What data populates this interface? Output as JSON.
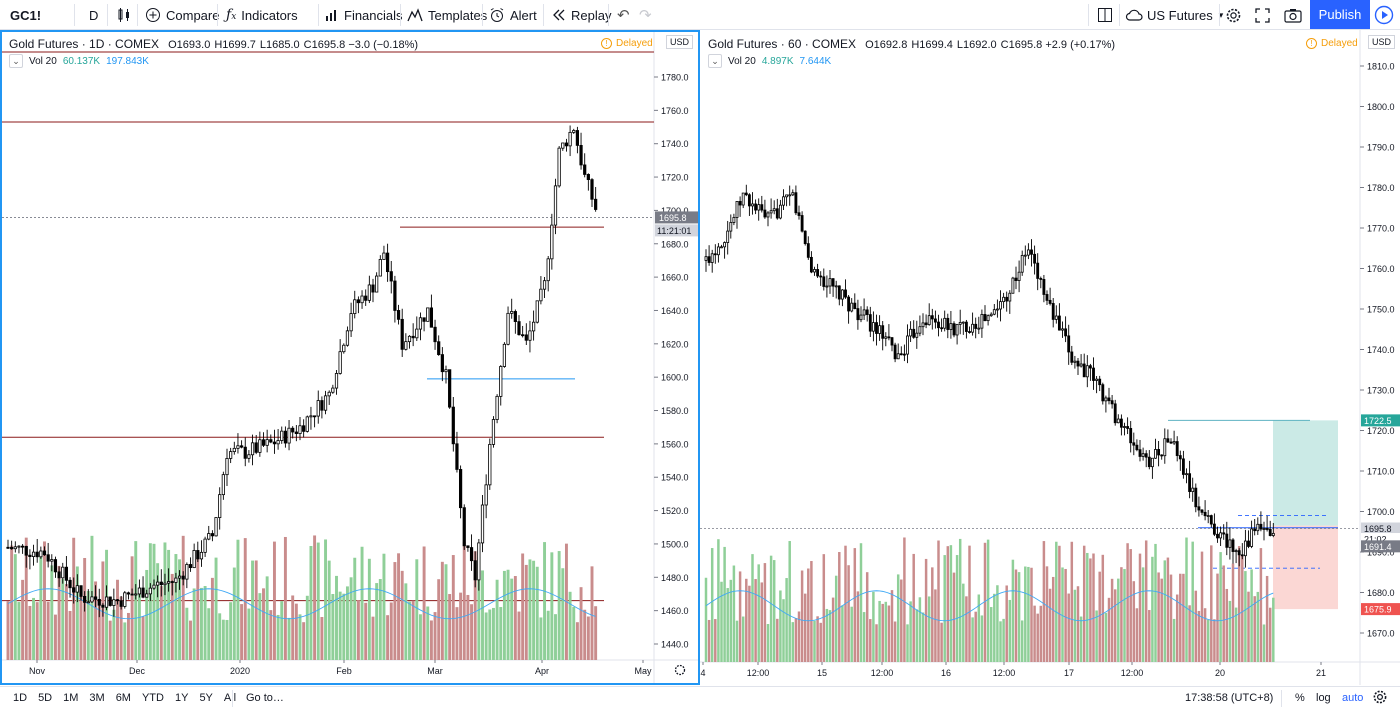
{
  "toolbar": {
    "symbol": "GC1!",
    "interval": "D",
    "compare": "Compare",
    "indicators": "Indicators",
    "financials": "Financials",
    "templates": "Templates",
    "alert": "Alert",
    "replay": "Replay",
    "market": "US Futures",
    "publish": "Publish"
  },
  "left": {
    "title": "Gold Futures · 1D · COMEX",
    "ohlc": [
      {
        "k": "O",
        "v": "1693.0"
      },
      {
        "k": "H",
        "v": "1699.7"
      },
      {
        "k": "L",
        "v": "1685.0"
      },
      {
        "k": "C",
        "v": "1695.8"
      }
    ],
    "change": "−3.0 (−0.18%)",
    "vol_label": "Vol 20",
    "vol_a": "60.137K",
    "vol_b": "197.843K",
    "delayed": "Delayed",
    "currency": "USD",
    "last_price": "1695.8",
    "countdown": "11:21:01",
    "y_ticks": [
      "1780.0",
      "1760.0",
      "1740.0",
      "1720.0",
      "1700.0",
      "1680.0",
      "1660.0",
      "1640.0",
      "1620.0",
      "1600.0",
      "1580.0",
      "1560.0",
      "1540.0",
      "1520.0",
      "1500.0",
      "1480.0",
      "1460.0",
      "1440.0"
    ],
    "x_ticks": [
      "Nov",
      "Dec",
      "2020",
      "Feb",
      "Mar",
      "Apr",
      "May"
    ]
  },
  "right": {
    "title": "Gold Futures · 60 · COMEX",
    "ohlc": [
      {
        "k": "O",
        "v": "1692.8"
      },
      {
        "k": "H",
        "v": "1699.4"
      },
      {
        "k": "L",
        "v": "1692.0"
      },
      {
        "k": "C",
        "v": "1695.8"
      }
    ],
    "change": "+2.9 (+0.17%)",
    "vol_label": "Vol 20",
    "vol_a": "4.897K",
    "vol_b": "7.644K",
    "delayed": "Delayed",
    "currency": "USD",
    "last_price": "1695.8",
    "countdown": "21:02",
    "target_label": "1722.5",
    "entry_label": "1691.4",
    "stop_label": "1675.9",
    "y_ticks": [
      "1810.0",
      "1800.0",
      "1790.0",
      "1780.0",
      "1770.0",
      "1760.0",
      "1750.0",
      "1740.0",
      "1730.0",
      "1720.0",
      "1710.0",
      "1700.0",
      "1690.0",
      "1680.0",
      "1670.0"
    ],
    "x_ticks": [
      "4",
      "12:00",
      "15",
      "12:00",
      "16",
      "12:00",
      "17",
      "12:00",
      "20",
      "21"
    ]
  },
  "bottom": {
    "ranges": [
      "1D",
      "5D",
      "1M",
      "3M",
      "6M",
      "YTD",
      "1Y",
      "5Y",
      "All"
    ],
    "goto": "Go to…",
    "clock": "17:38:58 (UTC+8)",
    "percent": "%",
    "log": "log",
    "auto": "auto"
  },
  "colors": {
    "up": "#ffffff",
    "down": "#000000",
    "accent": "#2962ff",
    "vol_up": "#8fcf98",
    "vol_down": "#c98c8c",
    "hline": "#8b1a1a",
    "ma": "#3fa9f5"
  }
}
